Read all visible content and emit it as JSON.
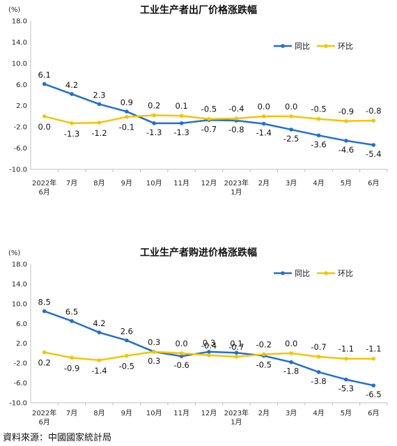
{
  "footer": {
    "source": "資料來源：中國國家統計局"
  },
  "legend_labels": {
    "yoy": "同比",
    "mom": "环比"
  },
  "colors": {
    "yoy": "#1f6fd1",
    "mom": "#f5c400",
    "axis": "#bfbfbf",
    "text": "#222222"
  },
  "categories": [
    "2022年\n6月",
    "7月",
    "8月",
    "9月",
    "10月",
    "11月",
    "12月",
    "2023年\n1月",
    "2月",
    "3月",
    "4月",
    "5月",
    "6月"
  ],
  "chart_data": [
    {
      "type": "line",
      "title": "工业生产者出厂价格涨跌幅",
      "ylabel": "(%)",
      "ylim": [
        -10,
        18
      ],
      "yticks": [
        "18.0",
        "14.0",
        "10.0",
        "6.0",
        "2.0",
        "-2.0",
        "-6.0",
        "-10.0"
      ],
      "ytick_values": [
        18,
        14,
        10,
        6,
        2,
        -2,
        -6,
        -10
      ],
      "legend_position": "top-right",
      "series": [
        {
          "name": "同比",
          "key": "yoy",
          "values": [
            6.1,
            4.2,
            2.3,
            0.9,
            -1.3,
            -1.3,
            -0.7,
            -0.8,
            -1.4,
            -2.5,
            -3.6,
            -4.6,
            -5.4
          ],
          "labels": [
            "6.1",
            "4.2",
            "2.3",
            "0.9",
            "-1.3",
            "-1.3",
            "-0.7",
            "-0.8",
            "-1.4",
            "-2.5",
            "-3.6",
            "-4.6",
            "-5.4"
          ]
        },
        {
          "name": "环比",
          "key": "mom",
          "values": [
            0.0,
            -1.3,
            -1.2,
            -0.1,
            0.2,
            0.1,
            -0.5,
            -0.4,
            0.0,
            0.0,
            -0.5,
            -0.9,
            -0.8
          ],
          "labels": [
            "0.0",
            "-1.3",
            "-1.2",
            "-0.1",
            "0.2",
            "0.1",
            "-0.5",
            "-0.4",
            "0.0",
            "0.0",
            "-0.5",
            "-0.9",
            "-0.8"
          ]
        }
      ]
    },
    {
      "type": "line",
      "title": "工业生产者购进价格涨跌幅",
      "ylabel": "(%)",
      "ylim": [
        -10,
        18
      ],
      "yticks": [
        "18.0",
        "14.0",
        "10.0",
        "6.0",
        "2.0",
        "-2.0",
        "-6.0",
        "-10.0"
      ],
      "ytick_values": [
        18,
        14,
        10,
        6,
        2,
        -2,
        -6,
        -10
      ],
      "legend_position": "top-right",
      "series": [
        {
          "name": "同比",
          "key": "yoy",
          "values": [
            8.5,
            6.5,
            4.2,
            2.6,
            0.3,
            -0.6,
            0.3,
            0.1,
            -0.5,
            -1.8,
            -3.8,
            -5.3,
            -6.5
          ],
          "labels": [
            "8.5",
            "6.5",
            "4.2",
            "2.6",
            "0.3",
            "-0.6",
            "0.3",
            "0.1",
            "-0.5",
            "-1.8",
            "-3.8",
            "-5.3",
            "-6.5"
          ]
        },
        {
          "name": "环比",
          "key": "mom",
          "values": [
            0.2,
            -0.9,
            -1.4,
            -0.5,
            0.3,
            0.0,
            -0.4,
            -0.7,
            -0.2,
            0.0,
            -0.7,
            -1.1,
            -1.1
          ],
          "labels": [
            "0.2",
            "-0.9",
            "-1.4",
            "-0.5",
            "0.3",
            "0.0",
            "-0.4",
            "-0.7",
            "-0.2",
            "0.0",
            "-0.7",
            "-1.1",
            "-1.1"
          ]
        }
      ]
    }
  ]
}
